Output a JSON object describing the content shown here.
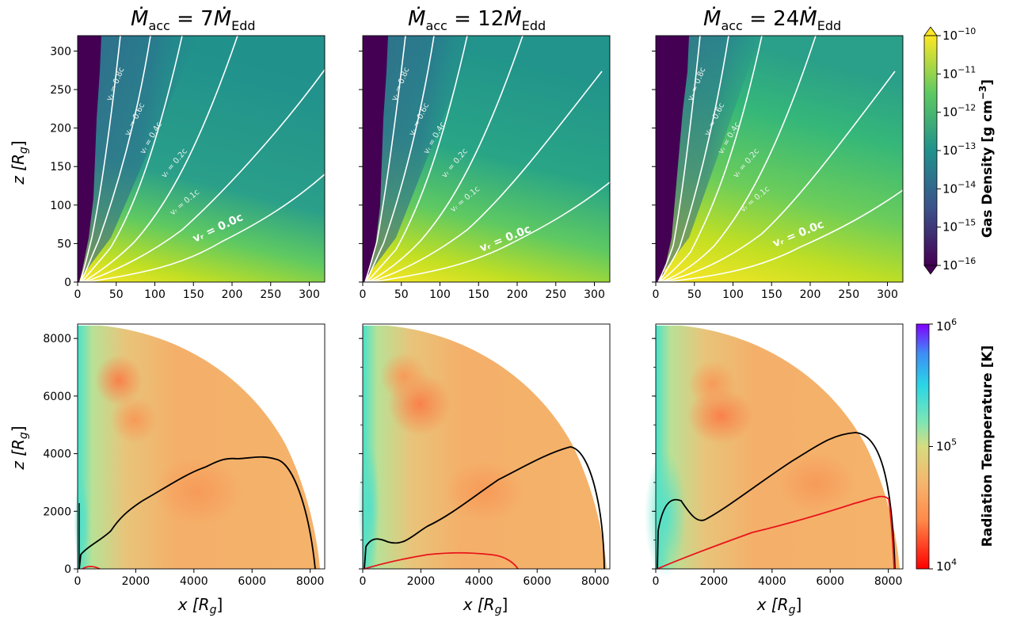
{
  "chart_data": {
    "type": "heatmap",
    "panel_titles": [
      "7",
      "12",
      "24"
    ],
    "title_prefix": "Ṁ",
    "title_sub_acc": "acc",
    "title_sub_edd": "Edd",
    "top_row": {
      "xlim": [
        0,
        320
      ],
      "ylim": [
        0,
        320
      ],
      "xticks": [
        "0",
        "50",
        "100",
        "150",
        "200",
        "250",
        "300"
      ],
      "yticks": [
        "0",
        "50",
        "100",
        "150",
        "200",
        "250",
        "300"
      ],
      "ylabel": "z [R",
      "ylabel_sub": "g",
      "contour_labels": [
        "v = 0.8c",
        "v = 0.6c",
        "v = 0.4c",
        "v = 0.2c",
        "v = 0.1c"
      ],
      "contour_label_main": "v = 0.0c",
      "contour_label_sub": "r",
      "colorbar": {
        "label": "Gas Density [g cm",
        "label_exp": "−3",
        "label_end": "]",
        "scale": "log",
        "ticks": [
          "10",
          "10",
          "10",
          "10",
          "10",
          "10",
          "10"
        ],
        "tick_exps": [
          "−10",
          "−11",
          "−12",
          "−13",
          "−14",
          "−15",
          "−16"
        ],
        "colormap": [
          "#440154",
          "#3b528b",
          "#21918c",
          "#5ec962",
          "#fde725"
        ]
      }
    },
    "bottom_row": {
      "xlim": [
        0,
        8500
      ],
      "ylim": [
        0,
        8500
      ],
      "xticks": [
        "0",
        "2000",
        "4000",
        "6000",
        "8000"
      ],
      "yticks": [
        "0",
        "2000",
        "4000",
        "6000",
        "8000"
      ],
      "xlabel": "x [R",
      "xlabel_sub": "g",
      "ylabel": "z [R",
      "ylabel_sub": "g",
      "colorbar": {
        "label": "Radiation Temperature [K]",
        "scale": "log",
        "ticks": [
          "10",
          "10",
          "10"
        ],
        "tick_exps": [
          "6",
          "5",
          "4"
        ],
        "colormap": [
          "#8000ff",
          "#2adddd",
          "#7fe6b0",
          "#d4dc7f",
          "#f6b36e",
          "#ff7a3d",
          "#ff0000"
        ]
      }
    },
    "contour_colors": {
      "velocity": "#ffffff",
      "photosphere": "#000000",
      "red": "#e8141b"
    }
  }
}
